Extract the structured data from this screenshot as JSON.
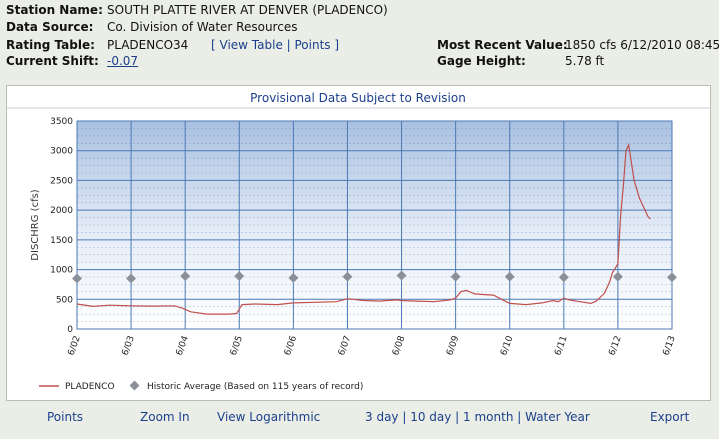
{
  "station": {
    "name_label": "Station Name:",
    "name_value": "SOUTH PLATTE RIVER AT DENVER (PLADENCO)",
    "source_label": "Data Source:",
    "source_value": "Co. Division of Water Resources",
    "rating_label": "Rating Table:",
    "rating_value": "PLADENCO34",
    "view_table": "View Table",
    "points_link": "Points",
    "shift_label": "Current Shift:",
    "shift_value": "-0.07",
    "recent_label": "Most Recent Value:",
    "recent_value": "1850 cfs 6/12/2010 08:45",
    "gage_label": "Gage Height:",
    "gage_value": "5.78 ft"
  },
  "chart_data": {
    "type": "line",
    "title": "Provisional Data Subject to Revision",
    "ylabel": "DISCHRG (cfs)",
    "xlabel": "",
    "ylim": [
      0,
      3500
    ],
    "yticks": [
      0,
      500,
      1000,
      1500,
      2000,
      2500,
      3000,
      3500
    ],
    "xlim": [
      0,
      11
    ],
    "x_tick_labels": [
      "6/02",
      "6/03",
      "6/04",
      "6/05",
      "6/06",
      "6/07",
      "6/08",
      "6/09",
      "6/10",
      "6/11",
      "6/12",
      "6/13"
    ],
    "grid": true,
    "legend": "bottom-left",
    "colors": {
      "pladenco": "#c0504d",
      "historic": "#8a8f99",
      "grid": "#4a7ab5"
    },
    "series": [
      {
        "name": "PLADENCO",
        "x": [
          0,
          0.3,
          0.6,
          1,
          1.4,
          1.8,
          1.95,
          2.1,
          2.4,
          2.8,
          2.95,
          3.05,
          3.3,
          3.7,
          4,
          4.4,
          4.8,
          5,
          5.3,
          5.6,
          5.9,
          6,
          6.3,
          6.6,
          6.9,
          7,
          7.1,
          7.2,
          7.35,
          7.5,
          7.7,
          7.85,
          8,
          8.3,
          8.6,
          8.8,
          8.9,
          9,
          9.1,
          9.3,
          9.5,
          9.6,
          9.75,
          9.85,
          9.9,
          9.95,
          10,
          10.05,
          10.1,
          10.15,
          10.2,
          10.25,
          10.3,
          10.4,
          10.5,
          10.55,
          10.6
        ],
        "y": [
          420,
          380,
          400,
          390,
          385,
          390,
          350,
          290,
          250,
          250,
          260,
          410,
          420,
          410,
          440,
          450,
          460,
          510,
          480,
          470,
          490,
          480,
          470,
          460,
          490,
          520,
          630,
          650,
          590,
          580,
          570,
          500,
          430,
          410,
          440,
          480,
          460,
          520,
          490,
          460,
          430,
          470,
          600,
          800,
          950,
          1020,
          1100,
          1900,
          2400,
          3000,
          3100,
          2800,
          2500,
          2200,
          2000,
          1900,
          1850
        ]
      },
      {
        "name": "Historic Average (Based on 115 years of record)",
        "x": [
          0,
          1,
          2,
          3,
          4,
          5,
          6,
          7,
          8,
          9,
          10,
          11
        ],
        "y": [
          850,
          850,
          890,
          890,
          860,
          880,
          900,
          880,
          880,
          870,
          880,
          870
        ]
      }
    ]
  },
  "bottom": {
    "points": "Points",
    "zoom_in": "Zoom In",
    "view_log": "View Logarithmic",
    "day3": "3 day",
    "day10": "10 day",
    "month1": "1 month",
    "water_year": "Water Year",
    "export": "Export"
  }
}
